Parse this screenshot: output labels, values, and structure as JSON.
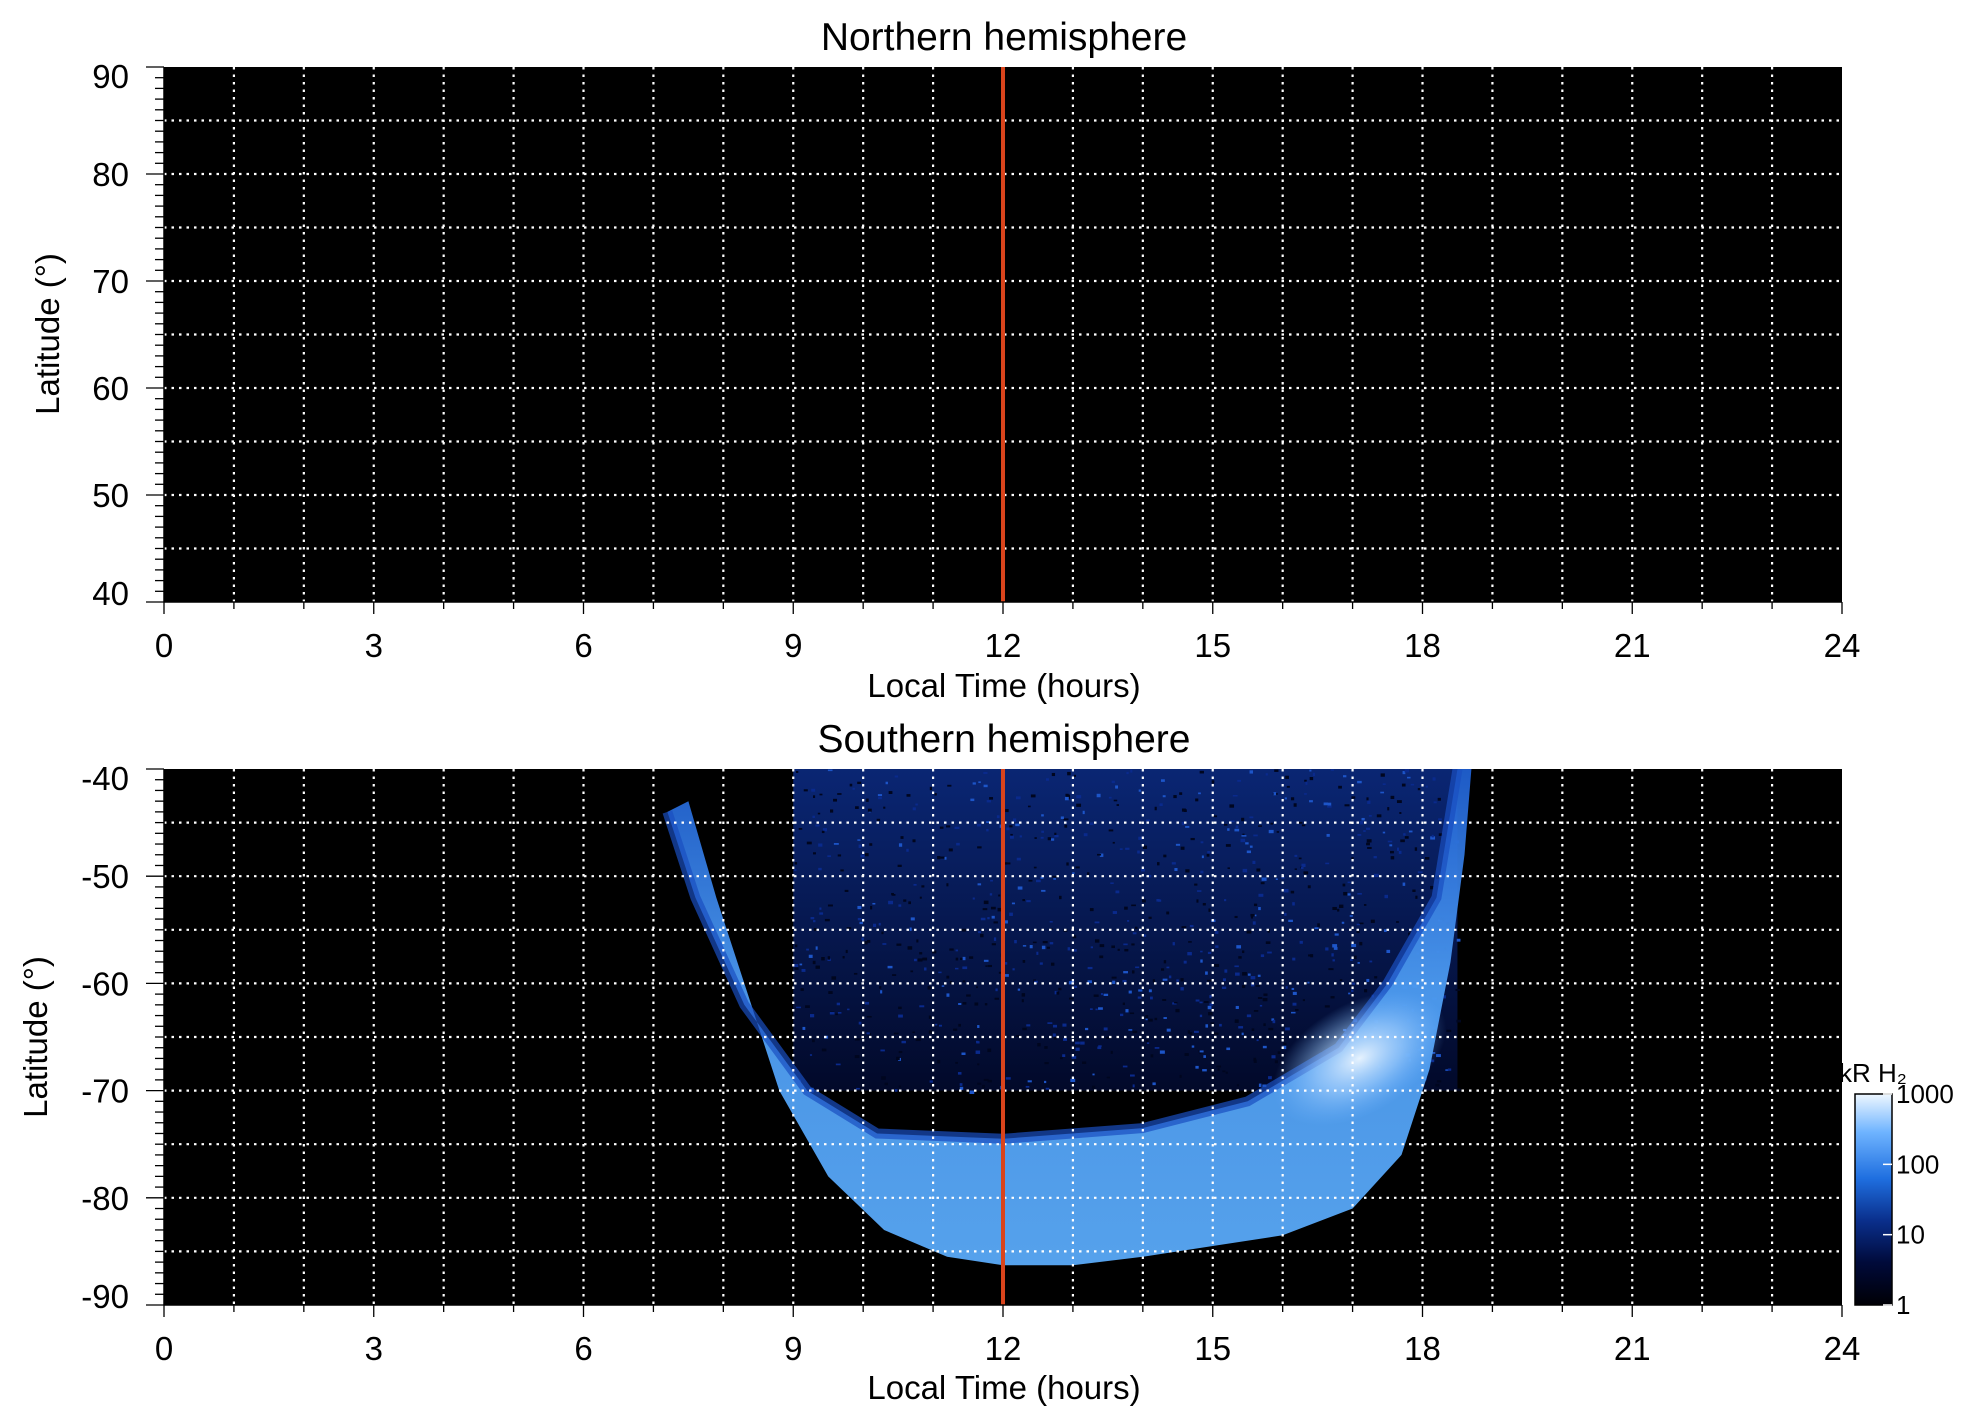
{
  "colors": {
    "background": "#000000",
    "grid": "#ffffff",
    "noon_line": "#d9441c",
    "colormap": [
      "#000005",
      "#000a3a",
      "#0a2f8c",
      "#1f6fe0",
      "#6fb4ff",
      "#eef7ff"
    ]
  },
  "chart_data": [
    {
      "type": "heatmap",
      "title": "Northern hemisphere",
      "xlabel": "Local Time (hours)",
      "ylabel": "Latitude (°)",
      "xlim": [
        0,
        24
      ],
      "ylim": [
        40,
        90
      ],
      "xticks": [
        "0",
        "3",
        "6",
        "9",
        "12",
        "15",
        "18",
        "21",
        "24"
      ],
      "yticks": [
        "40",
        "50",
        "60",
        "70",
        "80",
        "90"
      ],
      "grid": true,
      "vertical_line_x": 12,
      "emission": "none"
    },
    {
      "type": "heatmap",
      "title": "Southern hemisphere",
      "xlabel": "Local Time (hours)",
      "ylabel": "Latitude (°)",
      "xlim": [
        0,
        24
      ],
      "ylim": [
        -90,
        -40
      ],
      "xticks": [
        "0",
        "3",
        "6",
        "9",
        "12",
        "15",
        "18",
        "21",
        "24"
      ],
      "yticks": [
        "-40",
        "-50",
        "-60",
        "-70",
        "-80",
        "-90"
      ],
      "grid": true,
      "vertical_line_x": 12,
      "emission_region": {
        "dawn_edge": [
          [
            7.2,
            -44
          ],
          [
            7.6,
            -52
          ],
          [
            8.3,
            -62
          ],
          [
            9.2,
            -70
          ],
          [
            10.2,
            -74
          ],
          [
            12,
            -74.5
          ],
          [
            14,
            -73.5
          ],
          [
            15.5,
            -71
          ],
          [
            16.8,
            -66
          ],
          [
            17.5,
            -60
          ],
          [
            18.2,
            -52
          ],
          [
            18.5,
            -40
          ]
        ],
        "outer_edge": [
          [
            7.5,
            -43
          ],
          [
            7.9,
            -52
          ],
          [
            8.4,
            -62
          ],
          [
            8.8,
            -70
          ],
          [
            9.5,
            -78
          ],
          [
            10.3,
            -83
          ],
          [
            11.2,
            -85.5
          ],
          [
            12,
            -86.3
          ],
          [
            13,
            -86.3
          ],
          [
            14,
            -85.5
          ],
          [
            15,
            -84.5
          ],
          [
            16,
            -83.5
          ],
          [
            17,
            -81
          ],
          [
            17.7,
            -76
          ],
          [
            18.1,
            -68
          ],
          [
            18.4,
            -58
          ],
          [
            18.6,
            -48
          ],
          [
            18.7,
            -40
          ]
        ],
        "bright_spot": [
          17.1,
          -67
        ],
        "dim_region_x": [
          9,
          18.5
        ],
        "dim_region_y": [
          -40,
          -70
        ]
      },
      "colorbar": {
        "label": "kR H₂",
        "ticks": [
          "1000",
          "100",
          "10",
          "1"
        ],
        "scale": "log",
        "range": [
          1,
          1000
        ]
      }
    }
  ]
}
